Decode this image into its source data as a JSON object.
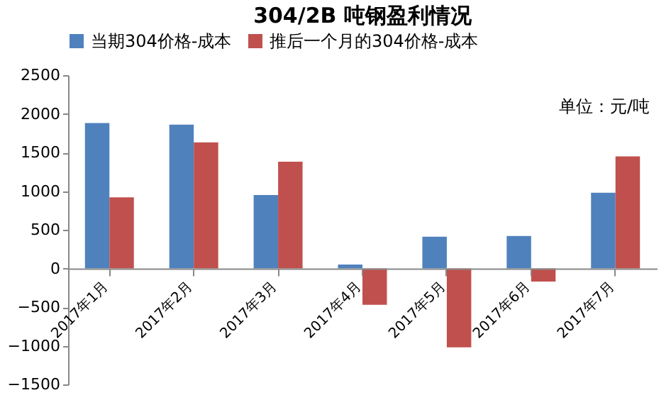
{
  "chart_data": {
    "type": "bar",
    "title": "304/2B 吨钢盈利情况",
    "categories": [
      "2017年1月",
      "2017年2月",
      "2017年3月",
      "2017年4月",
      "2017年5月",
      "2017年6月",
      "2017年7月"
    ],
    "series": [
      {
        "name": "当期304价格-成本",
        "color": "#4f81bd",
        "values": [
          1880,
          1860,
          950,
          50,
          410,
          420,
          980
        ]
      },
      {
        "name": "推后一个月的304价格-成本",
        "color": "#c0504d",
        "values": [
          920,
          1630,
          1380,
          -470,
          -1020,
          -170,
          1450
        ]
      }
    ],
    "ylim": [
      -1500,
      2500
    ],
    "yticks": [
      -1500,
      -1000,
      -500,
      0,
      500,
      1000,
      1500,
      2000,
      2500
    ],
    "annotations": [
      "单位：元/吨"
    ],
    "legend": "top",
    "grid": false
  }
}
